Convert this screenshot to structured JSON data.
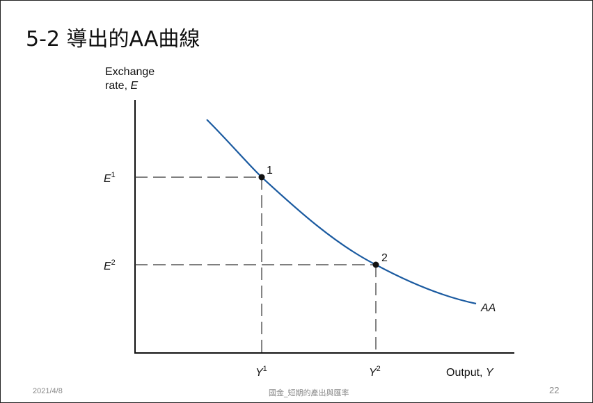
{
  "slide": {
    "title": "5-2 導出的AA曲線",
    "footer_date": "2021/4/8",
    "footer_center": "國金_短期的產出與匯率",
    "page_number": "22"
  },
  "chart_data": {
    "type": "line",
    "ylabel_line1": "Exchange",
    "ylabel_line2_prefix": "rate, ",
    "ylabel_var": "E",
    "xlabel_prefix": "Output, ",
    "xlabel_var": "Y",
    "curve_label": "AA",
    "y_ticks": [
      {
        "base": "E",
        "sup": "1",
        "value": 1
      },
      {
        "base": "E",
        "sup": "2",
        "value": 2
      }
    ],
    "x_ticks": [
      {
        "base": "Y",
        "sup": "1",
        "value": 1
      },
      {
        "base": "Y",
        "sup": "2",
        "value": 2
      }
    ],
    "points": [
      {
        "label": "1",
        "x_tick": "Y1",
        "y_tick": "E1"
      },
      {
        "label": "2",
        "x_tick": "Y2",
        "y_tick": "E2"
      }
    ],
    "series": [
      {
        "name": "AA",
        "color": "#1a5aa0",
        "shape": "downward-sloping convex curve through points 1 and 2"
      }
    ],
    "colors": {
      "curve": "#1a5aa0",
      "axis": "#111111",
      "guide": "#333333"
    }
  }
}
